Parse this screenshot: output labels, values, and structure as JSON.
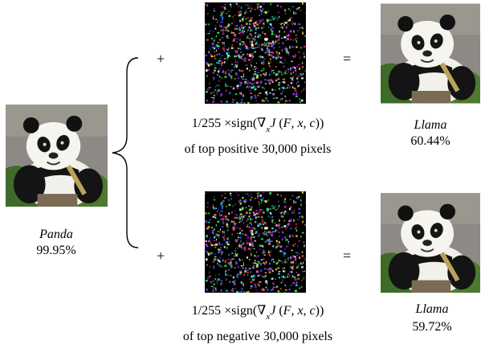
{
  "source": {
    "class_name": "Panda",
    "confidence": "99.95%"
  },
  "rows": [
    {
      "operator_plus": "+",
      "operator_equals": "=",
      "formula": {
        "prefix": "1/255 ×sign(∇",
        "sub": "x",
        "J": "J",
        "mid": " (",
        "F": "F",
        "comma1": ", ",
        "x": "x",
        "comma2": ", ",
        "c": "c",
        "suffix": "))"
      },
      "caption_line2": "of top positive 30,000 pixels",
      "result": {
        "class_name": "Llama",
        "confidence": "60.44%"
      }
    },
    {
      "operator_plus": "+",
      "operator_equals": "=",
      "formula": {
        "prefix": "1/255 ×sign(∇",
        "sub": "x",
        "J": "J",
        "mid": " (",
        "F": "F",
        "comma1": ", ",
        "x": "x",
        "comma2": ", ",
        "c": "c",
        "suffix": "))"
      },
      "caption_line2": "of top negative 30,000  pixels",
      "result": {
        "class_name": "Llama",
        "confidence": "59.72%"
      }
    }
  ],
  "colors": {
    "noise_background": "#000000",
    "brace": "#000000"
  }
}
